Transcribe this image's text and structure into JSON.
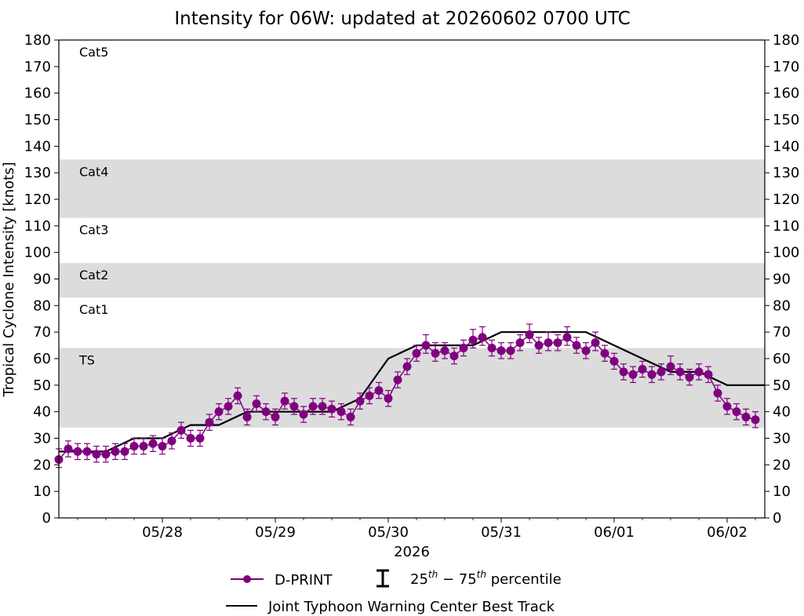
{
  "chart_data": {
    "type": "line",
    "title": "Intensity for 06W: updated at 20260602 0700 UTC",
    "ylabel": "Tropical Cyclone Intensity [knots]",
    "xlabel": "2026",
    "ylim": [
      0,
      180
    ],
    "yticks": [
      0,
      10,
      20,
      30,
      40,
      50,
      60,
      70,
      80,
      90,
      100,
      110,
      120,
      130,
      140,
      150,
      160,
      170,
      180
    ],
    "xlim": [
      "2026-05-27T02:00",
      "2026-06-02T08:00"
    ],
    "xticks": [
      {
        "label": "05/28",
        "t": "2026-05-28T00:00"
      },
      {
        "label": "05/29",
        "t": "2026-05-29T00:00"
      },
      {
        "label": "05/30",
        "t": "2026-05-30T00:00"
      },
      {
        "label": "05/31",
        "t": "2026-05-31T00:00"
      },
      {
        "label": "06/01",
        "t": "2026-06-01T00:00"
      },
      {
        "label": "06/02",
        "t": "2026-06-02T00:00"
      }
    ],
    "bands": [
      {
        "label": "TS",
        "from": 34,
        "to": 64,
        "shaded": true
      },
      {
        "label": "Cat1",
        "from": 64,
        "to": 83,
        "shaded": false
      },
      {
        "label": "Cat2",
        "from": 83,
        "to": 96,
        "shaded": true
      },
      {
        "label": "Cat3",
        "from": 96,
        "to": 113,
        "shaded": false
      },
      {
        "label": "Cat4",
        "from": 113,
        "to": 135,
        "shaded": true
      },
      {
        "label": "Cat5",
        "from": 135,
        "to": 180,
        "shaded": false
      }
    ],
    "band_color": "#dcdcdc",
    "series": [
      {
        "name": "D-PRINT",
        "color": "#800080",
        "x": [
          "2026-05-27T02:00",
          "2026-05-27T04:00",
          "2026-05-27T06:00",
          "2026-05-27T08:00",
          "2026-05-27T10:00",
          "2026-05-27T12:00",
          "2026-05-27T14:00",
          "2026-05-27T16:00",
          "2026-05-27T18:00",
          "2026-05-27T20:00",
          "2026-05-27T22:00",
          "2026-05-28T00:00",
          "2026-05-28T02:00",
          "2026-05-28T04:00",
          "2026-05-28T06:00",
          "2026-05-28T08:00",
          "2026-05-28T10:00",
          "2026-05-28T12:00",
          "2026-05-28T14:00",
          "2026-05-28T16:00",
          "2026-05-28T18:00",
          "2026-05-28T20:00",
          "2026-05-28T22:00",
          "2026-05-29T00:00",
          "2026-05-29T02:00",
          "2026-05-29T04:00",
          "2026-05-29T06:00",
          "2026-05-29T08:00",
          "2026-05-29T10:00",
          "2026-05-29T12:00",
          "2026-05-29T14:00",
          "2026-05-29T16:00",
          "2026-05-29T18:00",
          "2026-05-29T20:00",
          "2026-05-29T22:00",
          "2026-05-30T00:00",
          "2026-05-30T02:00",
          "2026-05-30T04:00",
          "2026-05-30T06:00",
          "2026-05-30T08:00",
          "2026-05-30T10:00",
          "2026-05-30T12:00",
          "2026-05-30T14:00",
          "2026-05-30T16:00",
          "2026-05-30T18:00",
          "2026-05-30T20:00",
          "2026-05-30T22:00",
          "2026-05-31T00:00",
          "2026-05-31T02:00",
          "2026-05-31T04:00",
          "2026-05-31T06:00",
          "2026-05-31T08:00",
          "2026-05-31T10:00",
          "2026-05-31T12:00",
          "2026-05-31T14:00",
          "2026-05-31T16:00",
          "2026-05-31T18:00",
          "2026-05-31T20:00",
          "2026-05-31T22:00",
          "2026-06-01T00:00",
          "2026-06-01T02:00",
          "2026-06-01T04:00",
          "2026-06-01T06:00",
          "2026-06-01T08:00",
          "2026-06-01T10:00",
          "2026-06-01T12:00",
          "2026-06-01T14:00",
          "2026-06-01T16:00",
          "2026-06-01T18:00",
          "2026-06-01T20:00",
          "2026-06-01T22:00",
          "2026-06-02T00:00",
          "2026-06-02T02:00",
          "2026-06-02T04:00",
          "2026-06-02T06:00"
        ],
        "values": [
          22,
          26,
          25,
          25,
          24,
          24,
          25,
          25,
          27,
          27,
          28,
          27,
          29,
          33,
          30,
          30,
          36,
          40,
          42,
          46,
          38,
          43,
          40,
          38,
          44,
          42,
          39,
          42,
          42,
          41,
          40,
          38,
          44,
          46,
          48,
          45,
          52,
          57,
          62,
          65,
          62,
          63,
          61,
          64,
          67,
          68,
          64,
          63,
          63,
          66,
          69,
          65,
          66,
          66,
          68,
          65,
          63,
          66,
          62,
          59,
          55,
          54,
          56,
          54,
          55,
          57,
          55,
          53,
          55,
          54,
          47,
          42,
          40,
          38,
          37
        ],
        "q25": [
          19,
          23,
          22,
          22,
          21,
          21,
          22,
          22,
          24,
          24,
          25,
          24,
          26,
          30,
          27,
          27,
          33,
          37,
          39,
          43,
          35,
          40,
          37,
          35,
          41,
          39,
          36,
          39,
          39,
          38,
          37,
          35,
          41,
          43,
          45,
          42,
          49,
          54,
          59,
          62,
          59,
          60,
          58,
          61,
          64,
          65,
          61,
          60,
          60,
          63,
          66,
          62,
          63,
          63,
          65,
          62,
          60,
          63,
          59,
          56,
          52,
          51,
          53,
          51,
          52,
          54,
          52,
          50,
          52,
          51,
          44,
          39,
          37,
          35,
          34
        ],
        "q75": [
          26,
          29,
          28,
          28,
          27,
          27,
          28,
          28,
          30,
          30,
          31,
          30,
          32,
          36,
          33,
          33,
          39,
          43,
          45,
          49,
          41,
          46,
          43,
          41,
          47,
          45,
          42,
          45,
          45,
          44,
          43,
          41,
          47,
          49,
          51,
          48,
          55,
          60,
          65,
          69,
          66,
          66,
          64,
          67,
          71,
          72,
          67,
          66,
          66,
          69,
          73,
          68,
          70,
          69,
          72,
          68,
          66,
          70,
          65,
          62,
          58,
          57,
          59,
          57,
          58,
          61,
          58,
          56,
          58,
          57,
          50,
          45,
          43,
          41,
          40
        ]
      },
      {
        "name": "Joint Typhoon Warning Center Best Track",
        "color": "#000000",
        "x": [
          "2026-05-27T02:00",
          "2026-05-27T12:00",
          "2026-05-27T18:00",
          "2026-05-28T00:00",
          "2026-05-28T06:00",
          "2026-05-28T12:00",
          "2026-05-28T18:00",
          "2026-05-29T00:00",
          "2026-05-29T06:00",
          "2026-05-29T12:00",
          "2026-05-29T18:00",
          "2026-05-30T00:00",
          "2026-05-30T06:00",
          "2026-05-30T12:00",
          "2026-05-30T18:00",
          "2026-05-31T00:00",
          "2026-05-31T06:00",
          "2026-05-31T12:00",
          "2026-05-31T18:00",
          "2026-06-01T00:00",
          "2026-06-01T06:00",
          "2026-06-01T12:00",
          "2026-06-01T18:00",
          "2026-06-02T00:00",
          "2026-06-02T06:00",
          "2026-06-02T08:00"
        ],
        "values": [
          25,
          25,
          30,
          30,
          35,
          35,
          40,
          40,
          40,
          40,
          45,
          60,
          65,
          65,
          65,
          70,
          70,
          70,
          70,
          65,
          60,
          55,
          55,
          50,
          50,
          50
        ]
      }
    ],
    "legend": {
      "placement": "bottom-center",
      "items": [
        {
          "label": "D-PRINT"
        },
        {
          "label": "percentile"
        },
        {
          "label": "Joint Typhoon Warning Center Best Track"
        }
      ]
    },
    "percentile_marker": {
      "low": "25",
      "high": "75",
      "sup": "th",
      "word": "percentile"
    },
    "grid": false
  }
}
